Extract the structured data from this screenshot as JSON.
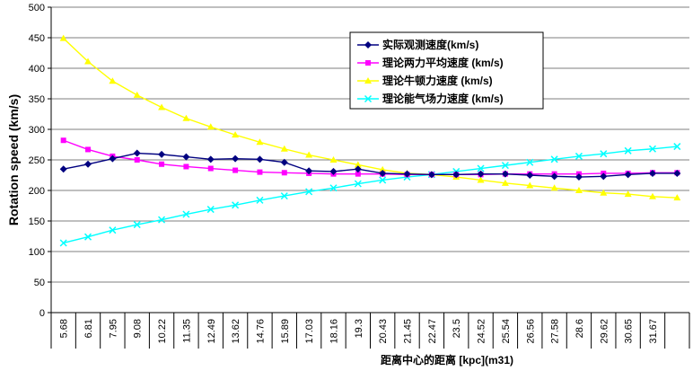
{
  "chart_data": {
    "type": "line",
    "title": "",
    "xlabel": "距离中心的距离 [kpc](m31)",
    "ylabel": "Rotation speed (km/s)",
    "ylim": [
      0,
      500
    ],
    "yticks": [
      0,
      50,
      100,
      150,
      200,
      250,
      300,
      350,
      400,
      450,
      500
    ],
    "categories": [
      "5.68",
      "6.81",
      "7.95",
      "9.08",
      "10.22",
      "11.35",
      "12.49",
      "13.62",
      "14.76",
      "15.89",
      "17.03",
      "18.16",
      "19.3",
      "20.43",
      "21.45",
      "22.47",
      "23.5",
      "24.52",
      "25.54",
      "26.56",
      "27.58",
      "28.6",
      "29.62",
      "30.65",
      "31.67",
      ""
    ],
    "legend_position": "top-right",
    "series": [
      {
        "name": "实际观测速度(km/s)",
        "color": "#000080",
        "marker": "diamond",
        "values": [
          235,
          243,
          252,
          261,
          259,
          255,
          251,
          252,
          251,
          246,
          232,
          231,
          235,
          228,
          227,
          226,
          226,
          227,
          227,
          225,
          223,
          222,
          223,
          226,
          228,
          228
        ]
      },
      {
        "name": "理论两力平均速度 (km/s)",
        "color": "#FF00FF",
        "marker": "square",
        "values": [
          282,
          267,
          256,
          250,
          243,
          239,
          236,
          233,
          230,
          229,
          228,
          227,
          227,
          227,
          226,
          226,
          226,
          226,
          227,
          227,
          227,
          227,
          228,
          228,
          229,
          229
        ]
      },
      {
        "name": "理论牛顿力速度 (km/s)",
        "color": "#FFFF00",
        "marker": "triangle",
        "values": [
          449,
          411,
          379,
          356,
          336,
          318,
          304,
          291,
          279,
          268,
          258,
          250,
          242,
          234,
          228,
          226,
          222,
          217,
          212,
          208,
          204,
          200,
          196,
          194,
          190,
          188
        ]
      },
      {
        "name": "理论能气场力速度 (km/s)",
        "color": "#00FFFF",
        "marker": "x",
        "values": [
          114,
          124,
          135,
          144,
          152,
          161,
          169,
          176,
          184,
          191,
          198,
          204,
          211,
          217,
          222,
          226,
          231,
          236,
          241,
          246,
          251,
          256,
          260,
          265,
          268,
          272
        ]
      }
    ]
  }
}
